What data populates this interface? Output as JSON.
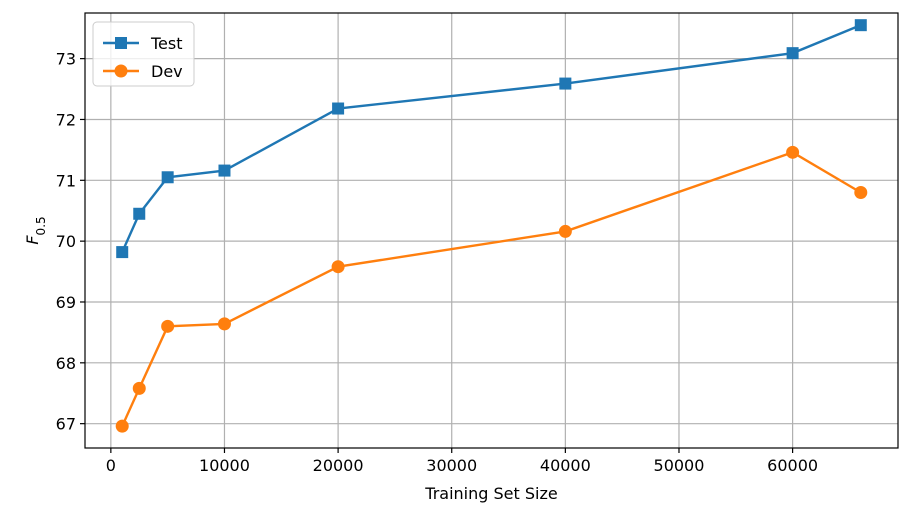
{
  "chart_data": {
    "type": "line",
    "xlabel": "Training Set Size",
    "ylabel_main": "F",
    "ylabel_sub": "0.5",
    "xlim": [
      -2275,
      69275
    ],
    "ylim": [
      66.6,
      73.75
    ],
    "xticks": [
      0,
      10000,
      20000,
      30000,
      40000,
      50000,
      60000
    ],
    "yticks": [
      67,
      68,
      69,
      70,
      71,
      72,
      73
    ],
    "grid": true,
    "legend_position": "top-left",
    "x": [
      1000,
      2500,
      5000,
      10000,
      20000,
      40000,
      60000,
      66000
    ],
    "series": [
      {
        "name": "Test",
        "color": "#1f77b4",
        "marker": "square",
        "values": [
          69.82,
          70.45,
          71.05,
          71.16,
          72.18,
          72.59,
          73.09,
          73.55
        ]
      },
      {
        "name": "Dev",
        "color": "#ff7f0e",
        "marker": "circle",
        "values": [
          66.96,
          67.58,
          68.6,
          68.64,
          69.58,
          70.16,
          71.46,
          70.8
        ]
      }
    ]
  }
}
